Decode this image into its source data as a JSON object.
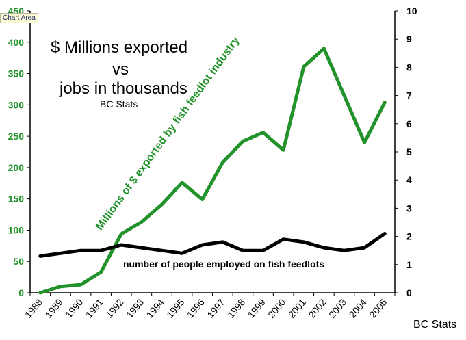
{
  "tooltip": "Chart Area",
  "title_lines": [
    "$ Millions  exported",
    "vs",
    "jobs in thousands",
    "BC Stats"
  ],
  "footer": "BC Stats",
  "chart_data": {
    "type": "line",
    "categories": [
      "1988",
      "1989",
      "1990",
      "1991",
      "1992",
      "1993",
      "1994",
      "1995",
      "1996",
      "1997",
      "1998",
      "1999",
      "2000",
      "2001",
      "2002",
      "2003",
      "2004",
      "2005"
    ],
    "series": [
      {
        "name": "Millions of $ exported by fish feedlot industry",
        "axis": "left",
        "color": "#22922b",
        "values": [
          0,
          10,
          13,
          33,
          94,
          113,
          141,
          176,
          149,
          208,
          242,
          256,
          228,
          361,
          390,
          315,
          240,
          304
        ]
      },
      {
        "name": "number of people employed on fish feedlots",
        "axis": "right",
        "color": "#000000",
        "values": [
          1.3,
          1.4,
          1.5,
          1.5,
          1.7,
          1.6,
          1.5,
          1.4,
          1.7,
          1.8,
          1.5,
          1.5,
          1.9,
          1.8,
          1.6,
          1.5,
          1.6,
          2.1
        ]
      }
    ],
    "y_left": {
      "min": 0,
      "max": 450,
      "ticks": [
        0,
        50,
        100,
        150,
        200,
        250,
        300,
        350,
        400,
        450
      ]
    },
    "y_right": {
      "min": 0,
      "max": 10,
      "ticks": [
        0,
        1,
        2,
        3,
        4,
        5,
        6,
        7,
        8,
        9,
        10
      ]
    },
    "left_tick_color": "#22922b",
    "right_tick_color": "#000000"
  }
}
